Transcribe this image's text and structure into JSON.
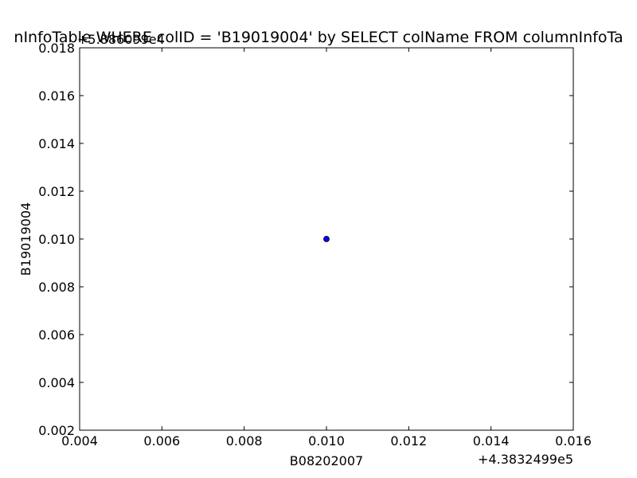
{
  "chart_data": {
    "type": "scatter",
    "title": "nInfoTable WHERE colID = 'B19019004' by SELECT colName FROM columnInfoTa",
    "xlabel": "B08202007",
    "ylabel": "B19019004",
    "x_offset_label": "+4.3832499e5",
    "y_offset_label": "+5.886099e4",
    "xlim": [
      0.004,
      0.016
    ],
    "ylim": [
      0.002,
      0.018
    ],
    "x_ticks": [
      "0.004",
      "0.006",
      "0.008",
      "0.010",
      "0.012",
      "0.014",
      "0.016"
    ],
    "y_ticks": [
      "0.002",
      "0.004",
      "0.006",
      "0.008",
      "0.010",
      "0.012",
      "0.014",
      "0.016",
      "0.018"
    ],
    "points": [
      {
        "x": 0.01,
        "y": 0.01
      }
    ],
    "marker_color": "#0000ff",
    "grid": false
  }
}
